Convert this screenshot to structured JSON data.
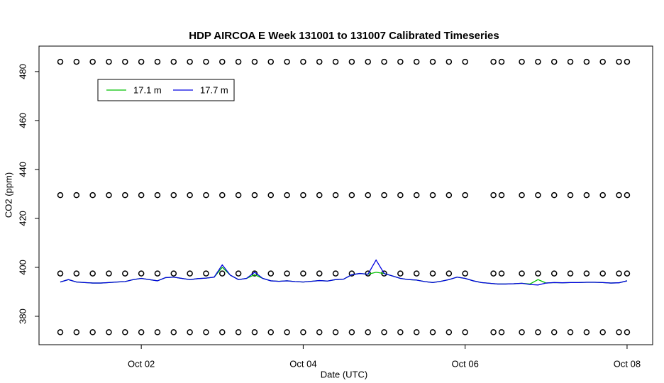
{
  "chart_data": {
    "type": "line",
    "title": "HDP AIRCOA E  Week 131001 to 131007  Calibrated Timeseries",
    "x_label": "Date (UTC)",
    "y_label": "CO2 (ppm)",
    "x": [
      1.0,
      1.1,
      1.2,
      1.3,
      1.4,
      1.5,
      1.6,
      1.7,
      1.8,
      1.9,
      2.0,
      2.1,
      2.2,
      2.3,
      2.4,
      2.5,
      2.6,
      2.7,
      2.8,
      2.9,
      3.0,
      3.1,
      3.2,
      3.3,
      3.4,
      3.5,
      3.6,
      3.7,
      3.8,
      3.9,
      4.0,
      4.1,
      4.2,
      4.3,
      4.4,
      4.5,
      4.6,
      4.7,
      4.8,
      4.9,
      5.0,
      5.1,
      5.2,
      5.3,
      5.4,
      5.5,
      5.6,
      5.7,
      5.8,
      5.9,
      6.0,
      6.1,
      6.2,
      6.3,
      6.4,
      6.5,
      6.6,
      6.7,
      6.8,
      6.9,
      7.0,
      7.1,
      7.2,
      7.3,
      7.4,
      7.5,
      7.6,
      7.7,
      7.8,
      7.9,
      8.0
    ],
    "series": [
      {
        "name": "17.1 m",
        "color": "#00c000",
        "values": [
          394,
          395,
          394,
          393.8,
          393.6,
          393.6,
          393.8,
          394,
          394.2,
          395,
          395.5,
          395,
          394.5,
          395.8,
          396,
          395.5,
          395,
          395.4,
          395.6,
          396,
          400,
          396.8,
          395,
          395.5,
          397,
          395.5,
          394.5,
          394.3,
          394.5,
          394.2,
          394,
          394.3,
          394.6,
          394.4,
          395,
          395.2,
          397,
          397.5,
          397.2,
          398,
          397.5,
          396.5,
          395.5,
          395,
          394.8,
          394.2,
          393.8,
          394.3,
          395,
          396,
          395.5,
          394.5,
          393.8,
          393.5,
          393.2,
          393.2,
          393.3,
          393.5,
          393.2,
          395,
          393.6,
          393.8,
          393.7,
          393.8,
          393.8,
          393.9,
          393.9,
          393.8,
          393.6,
          393.7,
          394.5
        ]
      },
      {
        "name": "17.7 m",
        "color": "#0000e0",
        "values": [
          394,
          395,
          394,
          393.8,
          393.6,
          393.6,
          393.8,
          394,
          394.2,
          395,
          395.5,
          395,
          394.5,
          395.8,
          396,
          395.5,
          395,
          395.4,
          395.6,
          396,
          401,
          396.8,
          395,
          395.5,
          398,
          395.5,
          394.5,
          394.3,
          394.5,
          394.2,
          394,
          394.3,
          394.6,
          394.4,
          395,
          395.2,
          397,
          397.5,
          397.2,
          403,
          397.5,
          396.5,
          395.5,
          395,
          394.8,
          394.2,
          393.8,
          394.3,
          395,
          396,
          395.5,
          394.5,
          393.8,
          393.5,
          393.2,
          393.2,
          393.3,
          393.5,
          393,
          392.8,
          393.6,
          393.8,
          393.7,
          393.8,
          393.8,
          393.9,
          393.9,
          393.8,
          393.6,
          393.7,
          394.5
        ]
      }
    ],
    "calibration": {
      "levels": [
        484,
        429.5,
        397.5,
        373.5
      ],
      "x": [
        1.0,
        1.2,
        1.4,
        1.6,
        1.8,
        2.0,
        2.2,
        2.4,
        2.6,
        2.8,
        3.0,
        3.2,
        3.4,
        3.6,
        3.8,
        4.0,
        4.2,
        4.4,
        4.6,
        4.8,
        5.0,
        5.2,
        5.4,
        5.6,
        5.8,
        6.0,
        6.35,
        6.45,
        6.7,
        6.9,
        7.1,
        7.3,
        7.5,
        7.7,
        7.9,
        8.0
      ]
    },
    "xlim": [
      0.737,
      8.316
    ],
    "xticks": [
      {
        "value": 2,
        "label": "Oct 02"
      },
      {
        "value": 4,
        "label": "Oct 04"
      },
      {
        "value": 6,
        "label": "Oct 06"
      },
      {
        "value": 8,
        "label": "Oct 08"
      }
    ],
    "ylim": [
      368.4,
      490.4
    ],
    "yticks": [
      380,
      400,
      420,
      440,
      460,
      480
    ],
    "legend": "top-left",
    "grid": false
  }
}
